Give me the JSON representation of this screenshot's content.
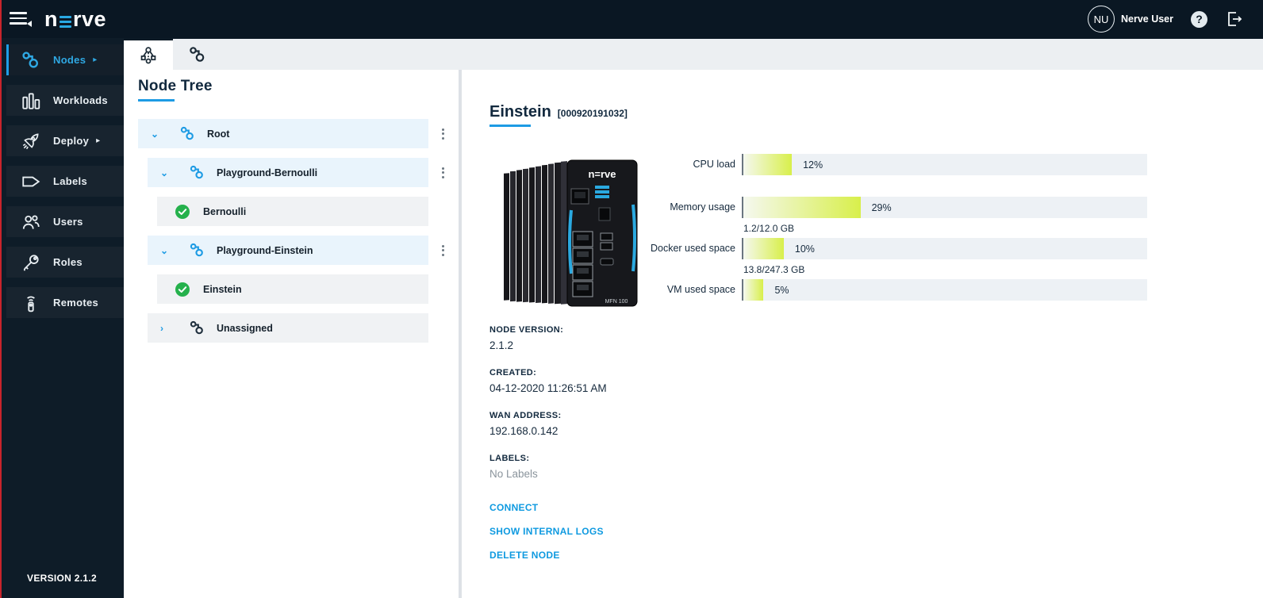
{
  "topbar": {
    "logo": {
      "prefix": "n",
      "suffix": "rve"
    },
    "user_initials": "NU",
    "user_name": "Nerve User",
    "help_glyph": "?"
  },
  "sidebar": {
    "items": [
      {
        "label": "Nodes",
        "icon": "nodes-icon",
        "active": true,
        "arrow": "▸"
      },
      {
        "label": "Workloads",
        "icon": "workloads-icon",
        "active": false,
        "arrow": ""
      },
      {
        "label": "Deploy",
        "icon": "deploy-icon",
        "active": false,
        "arrow": "▸"
      },
      {
        "label": "Labels",
        "icon": "labels-icon",
        "active": false,
        "arrow": ""
      },
      {
        "label": "Users",
        "icon": "users-icon",
        "active": false,
        "arrow": ""
      },
      {
        "label": "Roles",
        "icon": "roles-icon",
        "active": false,
        "arrow": ""
      },
      {
        "label": "Remotes",
        "icon": "remotes-icon",
        "active": false,
        "arrow": ""
      }
    ],
    "version": "VERSION 2.1.2"
  },
  "tabs": {
    "active_index": 0,
    "items": [
      "node-tree-tab",
      "node-list-tab"
    ]
  },
  "tree": {
    "title": "Node Tree",
    "rows": [
      {
        "label": "Root",
        "kind": "group",
        "level": 0,
        "expanded": true,
        "menu": true,
        "chevron": "⌄"
      },
      {
        "label": "Playground-Bernoulli",
        "kind": "group",
        "level": 1,
        "expanded": true,
        "menu": true,
        "chevron": "⌄"
      },
      {
        "label": "Bernoulli",
        "kind": "device",
        "level": 2,
        "status": "online"
      },
      {
        "label": "Playground-Einstein",
        "kind": "group",
        "level": 1,
        "expanded": true,
        "menu": true,
        "chevron": "⌄"
      },
      {
        "label": "Einstein",
        "kind": "device",
        "level": 2,
        "status": "online"
      },
      {
        "label": "Unassigned",
        "kind": "unassigned",
        "level": 1,
        "expanded": false,
        "menu": false,
        "chevron": "›"
      }
    ]
  },
  "detail": {
    "title": "Einstein",
    "serial": "[000920191032]",
    "device_model": "MFN 100",
    "gauges": [
      {
        "label": "CPU load",
        "value": 12,
        "display": "12%",
        "sub": ""
      },
      {
        "label": "Memory usage",
        "value": 29,
        "display": "29%",
        "sub": ""
      },
      {
        "label": "Docker used space",
        "value": 10,
        "display": "10%",
        "sub": "1.2/12.0 GB"
      },
      {
        "label": "VM used space",
        "value": 5,
        "display": "5%",
        "sub": "13.8/247.3 GB"
      }
    ],
    "info": [
      {
        "label": "NODE VERSION:",
        "value": "2.1.2"
      },
      {
        "label": "CREATED:",
        "value": "04-12-2020 11:26:51 AM"
      },
      {
        "label": "WAN ADDRESS:",
        "value": "192.168.0.142"
      },
      {
        "label": "LABELS:",
        "value": "No Labels"
      }
    ],
    "links": [
      "CONNECT",
      "SHOW INTERNAL LOGS",
      "DELETE NODE"
    ]
  },
  "colors": {
    "accent_blue": "#1d9be4",
    "link_blue": "#0f9ae0",
    "navy": "#12293e",
    "online_green": "#25b14c",
    "gauge_fill": "#d8ef4b",
    "topbar_bg": "#0a1723",
    "sidebar_bg": "#0e1c28"
  }
}
